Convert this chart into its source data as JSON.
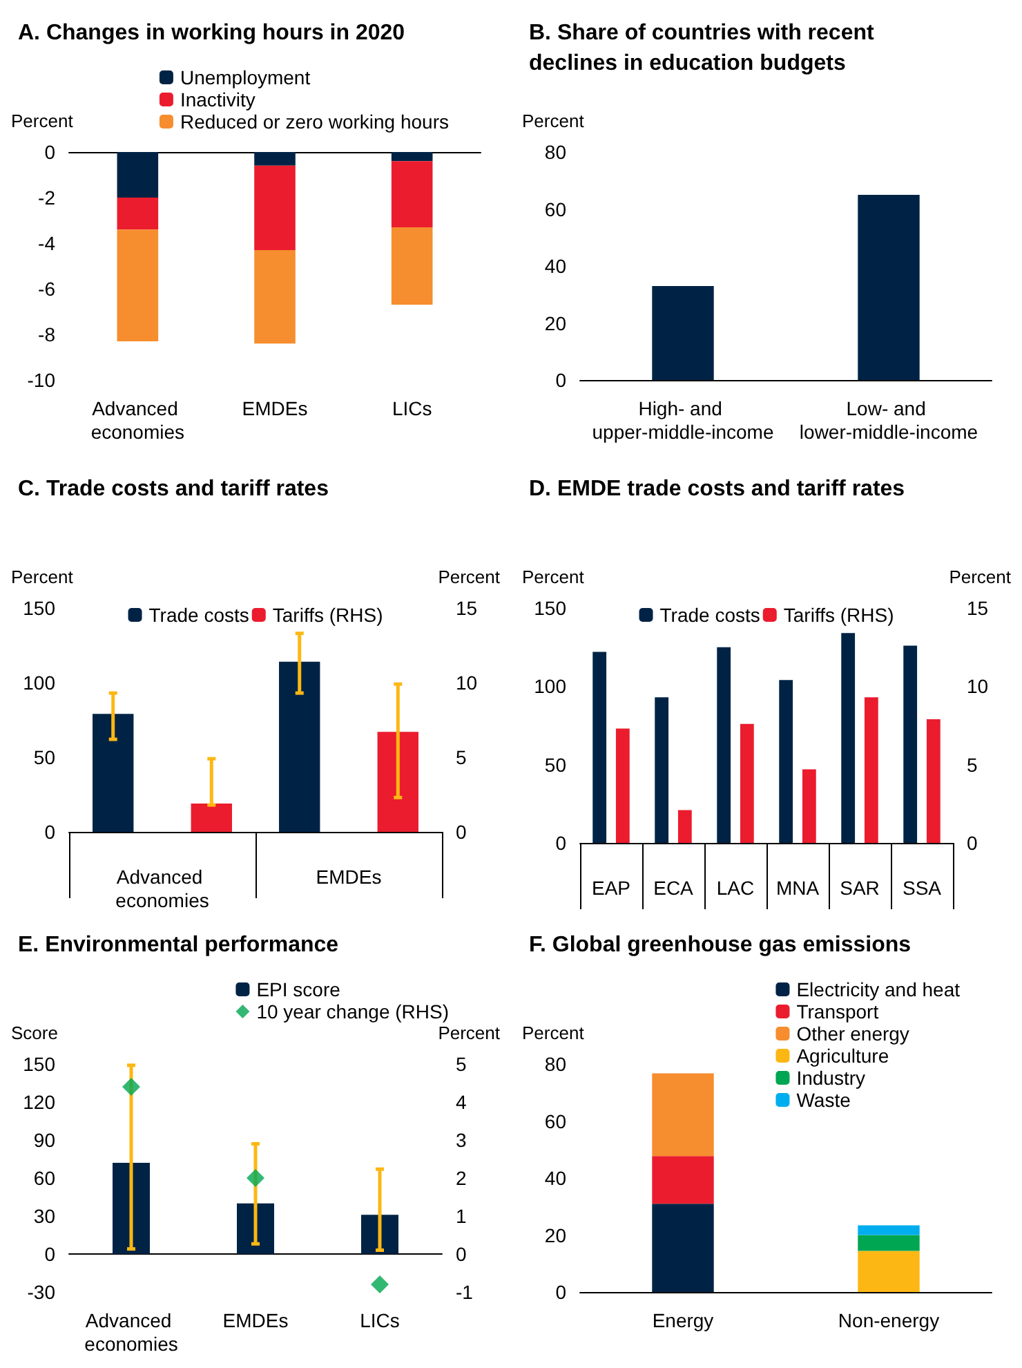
{
  "chart_data": [
    {
      "type": "bar",
      "title": "A. Changes in working hours in 2020",
      "ylabel": "Percent",
      "categories": [
        "Advanced economies",
        "EMDEs",
        "LICs"
      ],
      "stacked": true,
      "legend": "top right",
      "ylim": [
        -10,
        0
      ],
      "yticks": [
        -10,
        -8,
        -6,
        -4,
        -2,
        0
      ],
      "series": [
        {
          "name": "Unemployment",
          "color": "#002345",
          "values": [
            -2.0,
            -0.6,
            -0.4
          ]
        },
        {
          "name": "Inactivity",
          "color": "#eb1c2d",
          "values": [
            -1.4,
            -3.7,
            -2.9
          ]
        },
        {
          "name": "Reduced or zero working hours",
          "color": "#f68d2e",
          "values": [
            -4.9,
            -4.1,
            -3.4
          ]
        }
      ]
    },
    {
      "type": "bar",
      "title": "B. Share of countries with recent declines in education budgets",
      "ylabel": "Percent",
      "categories": [
        "High- and upper-middle-income",
        "Low- and lower-middle-income"
      ],
      "values": [
        33,
        65
      ],
      "color": "#002345",
      "ylim": [
        0,
        80
      ],
      "yticks": [
        0,
        20,
        40,
        60,
        80
      ]
    },
    {
      "type": "bar",
      "title": "C. Trade costs and tariff rates",
      "ylabel": "Percent",
      "y2label": "Percent",
      "categories": [
        "Advanced economies",
        "EMDEs"
      ],
      "legend": "top",
      "ylim": [
        0,
        150
      ],
      "yticks": [
        0,
        50,
        100,
        150
      ],
      "y2lim": [
        0,
        15
      ],
      "y2ticks": [
        0,
        5,
        10,
        15
      ],
      "series": [
        {
          "name": "Trade costs",
          "color": "#002345",
          "values": [
            79,
            114
          ],
          "errors": [
            [
              62,
              93
            ],
            [
              93,
              133
            ]
          ]
        },
        {
          "name": "Tariffs (RHS)",
          "color": "#eb1c2d",
          "axis": "y2",
          "values": [
            1.9,
            6.7
          ],
          "errors": [
            [
              1.8,
              4.9
            ],
            [
              2.3,
              9.9
            ]
          ]
        }
      ]
    },
    {
      "type": "bar",
      "title": "D. EMDE trade costs and tariff rates",
      "ylabel": "Percent",
      "y2label": "Percent",
      "categories": [
        "EAP",
        "ECA",
        "LAC",
        "MNA",
        "SAR",
        "SSA"
      ],
      "legend": "top",
      "ylim": [
        0,
        150
      ],
      "yticks": [
        0,
        50,
        100,
        150
      ],
      "y2lim": [
        0,
        15
      ],
      "y2ticks": [
        0,
        5,
        10,
        15
      ],
      "series": [
        {
          "name": "Trade costs",
          "color": "#002345",
          "values": [
            122,
            93,
            125,
            104,
            134,
            126
          ]
        },
        {
          "name": "Tariffs (RHS)",
          "color": "#eb1c2d",
          "axis": "y2",
          "values": [
            7.3,
            2.1,
            7.6,
            4.7,
            9.3,
            7.9
          ]
        }
      ]
    },
    {
      "type": "bar",
      "title": "E. Environmental performance",
      "ylabel": "Score",
      "y2label": "Percent",
      "categories": [
        "Advanced economies",
        "EMDEs",
        "LICs"
      ],
      "legend": "top right",
      "marker": "diamond",
      "ylim": [
        -30,
        150
      ],
      "yticks": [
        -30,
        0,
        30,
        60,
        90,
        120,
        150
      ],
      "y2lim": [
        -1,
        5
      ],
      "y2ticks": [
        -1,
        0,
        1,
        2,
        3,
        4,
        5
      ],
      "series": [
        {
          "name": "EPI score",
          "color": "#002345",
          "values": [
            72,
            40,
            31
          ],
          "errors": [
            [
              4,
              149
            ],
            [
              8,
              87
            ],
            [
              3,
              67
            ]
          ]
        },
        {
          "name": "10 year change (RHS)",
          "type": "scatter",
          "color": "#00a651",
          "axis": "y2",
          "values": [
            4.4,
            2.0,
            -0.8
          ]
        }
      ]
    },
    {
      "type": "bar",
      "title": "F. Global greenhouse gas emissions",
      "ylabel": "Percent",
      "categories": [
        "Energy",
        "Non-energy"
      ],
      "stacked": true,
      "legend": "top right",
      "ylim": [
        0,
        80
      ],
      "yticks": [
        0,
        20,
        40,
        60,
        80
      ],
      "series": [
        {
          "name": "Electricity and heat",
          "color": "#002345",
          "values": [
            31,
            null
          ]
        },
        {
          "name": "Transport",
          "color": "#eb1c2d",
          "values": [
            16.7,
            null
          ]
        },
        {
          "name": "Other energy",
          "color": "#f68d2e",
          "values": [
            29,
            null
          ]
        },
        {
          "name": "Agriculture",
          "color": "#fdb714",
          "values": [
            null,
            14.4
          ]
        },
        {
          "name": "Industry",
          "color": "#00a651",
          "values": [
            null,
            5.6
          ]
        },
        {
          "name": "Waste",
          "color": "#00aeef",
          "values": [
            null,
            3.4
          ]
        }
      ]
    }
  ]
}
